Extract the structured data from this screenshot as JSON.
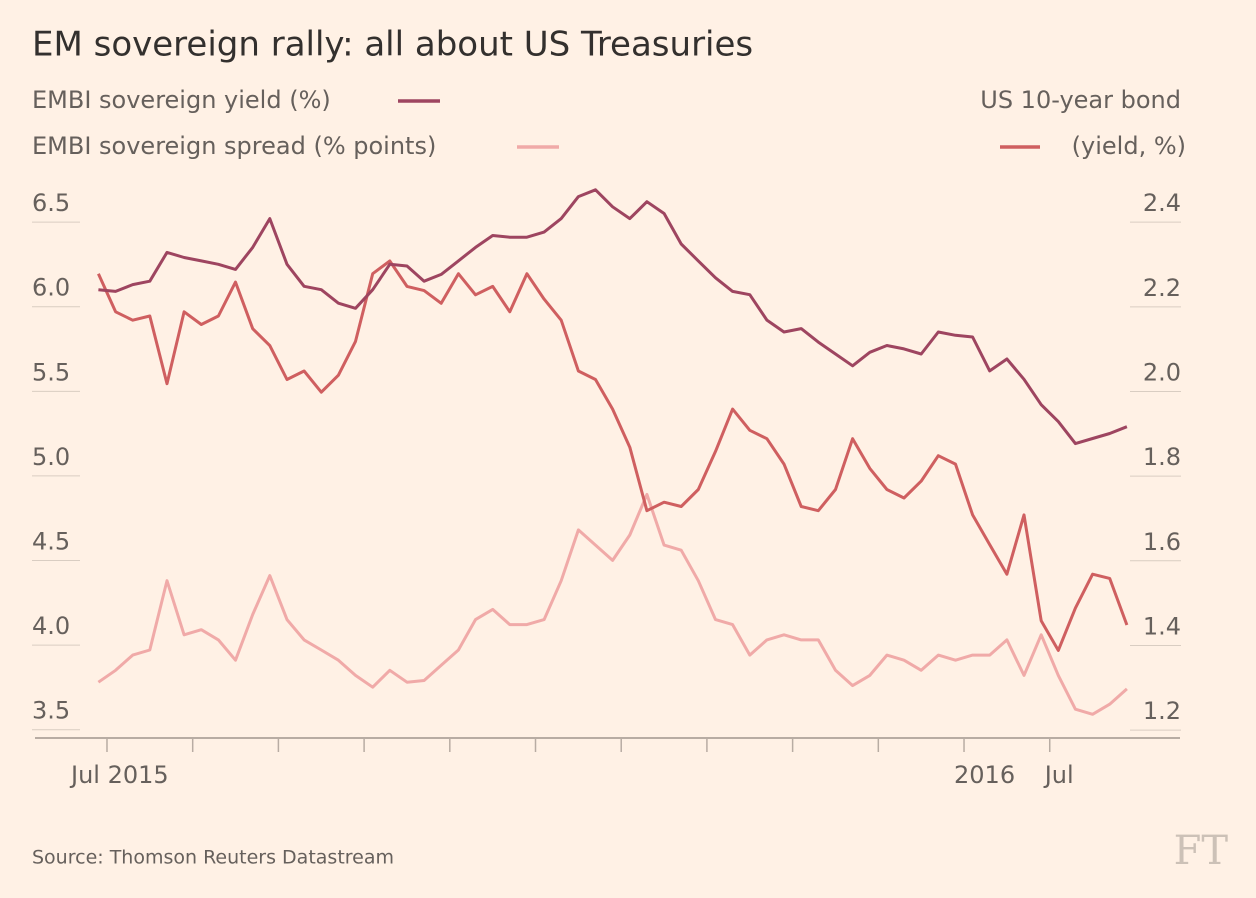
{
  "chart_data": {
    "type": "line",
    "title": "EM sovereign rally: all about US Treasuries",
    "source": "Source: Thomson Reuters Datastream",
    "logo": "FT",
    "x": [
      0,
      1,
      2,
      3,
      4,
      5,
      6,
      7,
      8,
      9,
      10,
      11,
      12,
      13,
      14,
      15,
      16,
      17,
      18,
      19,
      20,
      21,
      22,
      23,
      24,
      25,
      26,
      27,
      28,
      29,
      30,
      31,
      32,
      33,
      34,
      35,
      36,
      37,
      38,
      39,
      40,
      41,
      42,
      43,
      44,
      45,
      46,
      47,
      48,
      49,
      50,
      51,
      52,
      53,
      54,
      55,
      56,
      57,
      58,
      59,
      60
    ],
    "xlim": [
      -3.7,
      63.1
    ],
    "xticks": [
      {
        "value": 0.5,
        "label": "Jul 2015"
      },
      {
        "value": 5.5,
        "label": null
      },
      {
        "value": 10.5,
        "label": null
      },
      {
        "value": 15.5,
        "label": null
      },
      {
        "value": 20.5,
        "label": null
      },
      {
        "value": 25.5,
        "label": null
      },
      {
        "value": 30.5,
        "label": null
      },
      {
        "value": 35.5,
        "label": null
      },
      {
        "value": 40.5,
        "label": null
      },
      {
        "value": 45.5,
        "label": null
      },
      {
        "value": 50.5,
        "label": "2016"
      },
      {
        "value": 55.5,
        "label": "Jul"
      }
    ],
    "ylim": [
      3.38,
      6.69
    ],
    "yticks": [
      3.5,
      {
        "value": 4,
        "label": "4.0"
      },
      4.5,
      {
        "value": 5,
        "label": "5.0"
      },
      5.5,
      {
        "value": 6,
        "label": "6.0"
      },
      6.5
    ],
    "y2lim": [
      1.153,
      2.476
    ],
    "y2ticks": [
      1.2,
      1.4,
      1.6,
      1.8,
      {
        "value": 2,
        "label": "2.0"
      },
      2.2,
      2.4
    ],
    "grid": false,
    "series": [
      {
        "name": "EMBI sovereign yield (%)",
        "color": "#9e4560",
        "values": [
          6.03,
          6.02,
          6.06,
          6.08,
          6.25,
          6.22,
          6.2,
          6.18,
          6.15,
          6.28,
          6.45,
          6.18,
          6.05,
          6.03,
          5.95,
          5.92,
          6.03,
          6.18,
          6.17,
          6.08,
          6.12,
          6.2,
          6.28,
          6.35,
          6.34,
          6.34,
          6.37,
          6.45,
          6.58,
          6.62,
          6.52,
          6.45,
          6.55,
          6.48,
          6.3,
          6.2,
          6.1,
          6.02,
          6.0,
          5.85,
          5.78,
          5.8,
          5.72,
          5.65,
          5.58,
          5.66,
          5.7,
          5.68,
          5.65,
          5.78,
          5.76,
          5.75,
          5.55,
          5.62,
          5.5,
          5.35,
          5.25,
          5.12,
          5.15,
          5.18,
          5.22
        ]
      },
      {
        "name": "EMBI sovereign spread (% points)",
        "color": "#f0aaa8",
        "values": [
          3.71,
          3.78,
          3.87,
          3.9,
          4.31,
          3.99,
          4.02,
          3.96,
          3.84,
          4.11,
          4.34,
          4.08,
          3.96,
          3.9,
          3.84,
          3.75,
          3.68,
          3.78,
          3.71,
          3.72,
          3.81,
          3.9,
          4.08,
          4.14,
          4.05,
          4.05,
          4.08,
          4.31,
          4.61,
          4.52,
          4.43,
          4.58,
          4.82,
          4.52,
          4.49,
          4.31,
          4.08,
          4.05,
          3.87,
          3.96,
          3.99,
          3.96,
          3.96,
          3.78,
          3.69,
          3.75,
          3.87,
          3.84,
          3.78,
          3.87,
          3.84,
          3.87,
          3.87,
          3.96,
          3.75,
          3.99,
          3.75,
          3.55,
          3.52,
          3.58,
          3.67
        ]
      },
      {
        "name": "US 10-year bond",
        "unit": "(yield, %)",
        "color": "#cf5f60",
        "axis": "y2",
        "values": [
          2.25,
          2.16,
          2.14,
          2.15,
          1.99,
          2.16,
          2.13,
          2.15,
          2.23,
          2.12,
          2.08,
          2.0,
          2.02,
          1.97,
          2.01,
          2.09,
          2.25,
          2.28,
          2.22,
          2.21,
          2.18,
          2.25,
          2.2,
          2.22,
          2.16,
          2.25,
          2.19,
          2.14,
          2.02,
          2.0,
          1.93,
          1.84,
          1.69,
          1.71,
          1.7,
          1.74,
          1.83,
          1.93,
          1.88,
          1.86,
          1.8,
          1.7,
          1.69,
          1.74,
          1.86,
          1.79,
          1.74,
          1.72,
          1.76,
          1.82,
          1.8,
          1.68,
          1.61,
          1.54,
          1.68,
          1.43,
          1.36,
          1.46,
          1.54,
          1.53,
          1.42
        ]
      }
    ]
  }
}
